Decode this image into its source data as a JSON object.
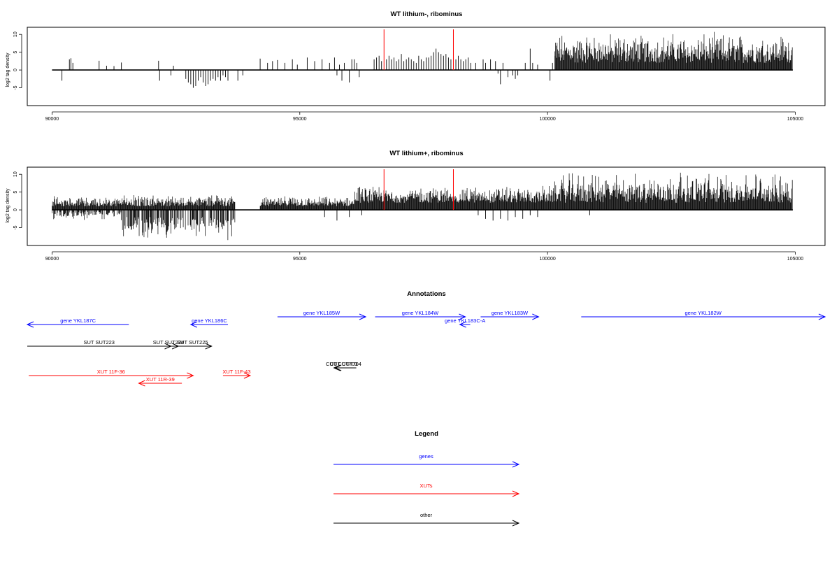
{
  "colors": {
    "genes": "#0000ff",
    "xuts": "#ff0000",
    "other": "#000000",
    "highlight": "#ff0000"
  },
  "chart_data": [
    {
      "type": "bar",
      "title": "WT lithium-, ribominus",
      "ylabel": "log2 tag density",
      "xlim": [
        89500,
        105600
      ],
      "ylim": [
        -10,
        12
      ],
      "x_ticks": [
        90000,
        95000,
        100000,
        105000
      ],
      "x_tick_labels": [
        "90000",
        "95000",
        "100000",
        "105000"
      ],
      "y_ticks": [
        -5,
        0,
        5,
        10
      ],
      "y_tick_labels": [
        "-5",
        "0",
        "5",
        "10"
      ],
      "baseline": [
        90000,
        104950
      ],
      "highlight_x": [
        96700,
        98100
      ],
      "bars": [
        {
          "x": 90200,
          "y": -3
        },
        {
          "x": 90350,
          "y": 3
        },
        {
          "x": 90380,
          "y": 3.3
        },
        {
          "x": 90420,
          "y": 2
        },
        {
          "x": 90950,
          "y": 2.6
        },
        {
          "x": 91100,
          "y": 1.2
        },
        {
          "x": 91250,
          "y": 1.1
        },
        {
          "x": 91400,
          "y": 2.1
        },
        {
          "x": 92150,
          "y": 2.6
        },
        {
          "x": 92170,
          "y": -3
        },
        {
          "x": 92400,
          "y": -1.5
        },
        {
          "x": 92450,
          "y": 1.2
        },
        {
          "x": 92700,
          "y": -2.5
        },
        {
          "x": 92750,
          "y": -3.5
        },
        {
          "x": 92800,
          "y": -4
        },
        {
          "x": 92850,
          "y": -5
        },
        {
          "x": 92900,
          "y": -4.5
        },
        {
          "x": 92950,
          "y": -3
        },
        {
          "x": 93000,
          "y": -2
        },
        {
          "x": 93050,
          "y": -3.5
        },
        {
          "x": 93100,
          "y": -4.5
        },
        {
          "x": 93150,
          "y": -4
        },
        {
          "x": 93200,
          "y": -3
        },
        {
          "x": 93250,
          "y": -2.5
        },
        {
          "x": 93300,
          "y": -3
        },
        {
          "x": 93350,
          "y": -2
        },
        {
          "x": 93400,
          "y": -3
        },
        {
          "x": 93450,
          "y": -1.5
        },
        {
          "x": 93500,
          "y": -2
        },
        {
          "x": 93550,
          "y": -3
        },
        {
          "x": 93750,
          "y": -3
        },
        {
          "x": 93850,
          "y": -1.5
        },
        {
          "x": 94200,
          "y": 3.2
        },
        {
          "x": 94350,
          "y": 2
        },
        {
          "x": 94450,
          "y": 2.5
        },
        {
          "x": 94550,
          "y": 2.8
        },
        {
          "x": 94700,
          "y": 2
        },
        {
          "x": 94850,
          "y": 3
        },
        {
          "x": 94950,
          "y": 1.5
        },
        {
          "x": 95150,
          "y": 3.5
        },
        {
          "x": 95300,
          "y": 2.5
        },
        {
          "x": 95450,
          "y": 3
        },
        {
          "x": 95600,
          "y": 2
        },
        {
          "x": 95700,
          "y": 3.5
        },
        {
          "x": 95750,
          "y": -1.5
        },
        {
          "x": 95800,
          "y": 1.5
        },
        {
          "x": 95850,
          "y": -3
        },
        {
          "x": 95900,
          "y": 2
        },
        {
          "x": 96000,
          "y": -3.5
        },
        {
          "x": 96050,
          "y": 3
        },
        {
          "x": 96100,
          "y": 3
        },
        {
          "x": 96150,
          "y": 2
        },
        {
          "x": 96200,
          "y": -2
        },
        {
          "x": 96500,
          "y": 3
        },
        {
          "x": 96550,
          "y": 3.5
        },
        {
          "x": 96600,
          "y": 4
        },
        {
          "x": 96650,
          "y": 2.5
        },
        {
          "x": 96750,
          "y": 3
        },
        {
          "x": 96800,
          "y": 4
        },
        {
          "x": 96850,
          "y": 3
        },
        {
          "x": 96900,
          "y": 3.5
        },
        {
          "x": 96950,
          "y": 2.5
        },
        {
          "x": 97000,
          "y": 3
        },
        {
          "x": 97050,
          "y": 4.5
        },
        {
          "x": 97100,
          "y": 2.5
        },
        {
          "x": 97150,
          "y": 3
        },
        {
          "x": 97200,
          "y": 3.5
        },
        {
          "x": 97250,
          "y": 3
        },
        {
          "x": 97300,
          "y": 2.5
        },
        {
          "x": 97350,
          "y": 2
        },
        {
          "x": 97400,
          "y": 4
        },
        {
          "x": 97450,
          "y": 3
        },
        {
          "x": 97500,
          "y": 2.5
        },
        {
          "x": 97550,
          "y": 3.5
        },
        {
          "x": 97600,
          "y": 3.5
        },
        {
          "x": 97650,
          "y": 4
        },
        {
          "x": 97700,
          "y": 5
        },
        {
          "x": 97750,
          "y": 6
        },
        {
          "x": 97800,
          "y": 5
        },
        {
          "x": 97850,
          "y": 4.5
        },
        {
          "x": 97900,
          "y": 4
        },
        {
          "x": 97950,
          "y": 4.5
        },
        {
          "x": 98000,
          "y": 3.5
        },
        {
          "x": 98050,
          "y": 3
        },
        {
          "x": 98150,
          "y": 3
        },
        {
          "x": 98200,
          "y": 4
        },
        {
          "x": 98250,
          "y": 3
        },
        {
          "x": 98300,
          "y": 2.5
        },
        {
          "x": 98350,
          "y": 3
        },
        {
          "x": 98400,
          "y": 3.5
        },
        {
          "x": 98450,
          "y": 2
        },
        {
          "x": 98550,
          "y": 2
        },
        {
          "x": 98700,
          "y": 3
        },
        {
          "x": 98750,
          "y": 2
        },
        {
          "x": 98850,
          "y": 3
        },
        {
          "x": 98950,
          "y": 2.5
        },
        {
          "x": 99000,
          "y": -1
        },
        {
          "x": 99050,
          "y": -4
        },
        {
          "x": 99100,
          "y": 2
        },
        {
          "x": 99200,
          "y": -2
        },
        {
          "x": 99300,
          "y": -1.5
        },
        {
          "x": 99350,
          "y": -2.5
        },
        {
          "x": 99400,
          "y": -1.5
        },
        {
          "x": 99550,
          "y": 2
        },
        {
          "x": 99650,
          "y": 6
        },
        {
          "x": 99700,
          "y": 2
        },
        {
          "x": 99800,
          "y": 1.5
        },
        {
          "x": 100050,
          "y": -3
        },
        {
          "x": 100100,
          "y": 2
        },
        {
          "x": 100150,
          "y": 4
        }
      ],
      "dense_region": {
        "x_start": 100150,
        "x_end": 104950,
        "y_min": 2,
        "y_max": 11
      }
    },
    {
      "type": "bar",
      "title": "WT lithium+, ribominus",
      "ylabel": "log2 tag density",
      "xlim": [
        89500,
        105600
      ],
      "ylim": [
        -10,
        12
      ],
      "x_ticks": [
        90000,
        95000,
        100000,
        105000
      ],
      "x_tick_labels": [
        "90000",
        "95000",
        "100000",
        "105000"
      ],
      "y_ticks": [
        -5,
        0,
        5,
        10
      ],
      "y_tick_labels": [
        "-5",
        "0",
        "5",
        "10"
      ],
      "baseline": [
        90000,
        104950
      ],
      "highlight_x": [
        96700,
        98100
      ],
      "bars": [
        {
          "x": 95500,
          "y": -2
        },
        {
          "x": 95750,
          "y": -3
        },
        {
          "x": 96000,
          "y": -2
        },
        {
          "x": 96250,
          "y": -1.5
        },
        {
          "x": 98600,
          "y": -1.5
        },
        {
          "x": 98750,
          "y": -2.5
        },
        {
          "x": 98900,
          "y": -3
        },
        {
          "x": 99050,
          "y": -2.5
        },
        {
          "x": 99200,
          "y": -3
        },
        {
          "x": 99350,
          "y": -2
        },
        {
          "x": 99500,
          "y": -2.5
        },
        {
          "x": 99650,
          "y": -1.5
        },
        {
          "x": 99800,
          "y": -2
        },
        {
          "x": 100850,
          "y": -1.5
        }
      ],
      "dense_regions": [
        {
          "x_start": 90000,
          "x_end": 91400,
          "y_min": 1,
          "y_max": 4,
          "neg_min": 0.5,
          "neg_max": 3
        },
        {
          "x_start": 91400,
          "x_end": 93700,
          "y_min": 1,
          "y_max": 4.5,
          "neg_min": 2,
          "neg_max": 9
        },
        {
          "x_start": 94200,
          "x_end": 96100,
          "y_min": 1,
          "y_max": 4,
          "neg_min": 0,
          "neg_max": 0
        },
        {
          "x_start": 96100,
          "x_end": 100100,
          "y_min": 2,
          "y_max": 7,
          "neg_min": 0,
          "neg_max": 0
        },
        {
          "x_start": 100100,
          "x_end": 104950,
          "y_min": 2,
          "y_max": 11,
          "neg_min": 0,
          "neg_max": 0
        }
      ]
    }
  ],
  "annotations": {
    "title": "Annotations",
    "xlim": [
      89500,
      105600
    ],
    "features": [
      {
        "label": "gene YKL187C",
        "start": 89500,
        "end": 91550,
        "strand": "-",
        "class": "genes",
        "row": 1
      },
      {
        "label": "gene YKL186C",
        "start": 92800,
        "end": 93550,
        "strand": "-",
        "class": "genes",
        "row": 1
      },
      {
        "label": "gene YKL185W",
        "start": 94550,
        "end": 96330,
        "strand": "+",
        "class": "genes",
        "row": 0
      },
      {
        "label": "gene YKL184W",
        "start": 96520,
        "end": 98340,
        "strand": "+",
        "class": "genes",
        "row": 0
      },
      {
        "label": "gene YKL183C-A",
        "start": 98230,
        "end": 98440,
        "strand": "-",
        "class": "genes",
        "row": 1
      },
      {
        "label": "gene YKL183W",
        "start": 98650,
        "end": 99820,
        "strand": "+",
        "class": "genes",
        "row": 0
      },
      {
        "label": "gene YKL182W",
        "start": 100680,
        "end": 105600,
        "strand": "+",
        "class": "genes",
        "row": 0
      },
      {
        "label": "SUT SUT223",
        "start": 89500,
        "end": 92400,
        "strand": "+",
        "class": "other",
        "row": 2
      },
      {
        "label": "SUT SUT224",
        "start": 92150,
        "end": 92550,
        "strand": "+",
        "class": "other",
        "row": 2
      },
      {
        "label": "SUT SUT225",
        "start": 92450,
        "end": 93220,
        "strand": "+",
        "class": "other",
        "row": 2
      },
      {
        "label": "XUT 11F-36",
        "start": 89530,
        "end": 92850,
        "strand": "+",
        "class": "xuts",
        "row": 3
      },
      {
        "label": "XUT 11R-39",
        "start": 91750,
        "end": 92620,
        "strand": "-",
        "class": "xuts",
        "row": 4
      },
      {
        "label": "XUT 11F-43",
        "start": 93450,
        "end": 94000,
        "strand": "+",
        "class": "xuts",
        "row": 3
      },
      {
        "label": "CUT CUT703",
        "start": 95690,
        "end": 96000,
        "strand": "-",
        "class": "other",
        "row": 5
      },
      {
        "label": "CUT CUT704",
        "start": 95710,
        "end": 96140,
        "strand": "-",
        "class": "other",
        "row": 5
      }
    ]
  },
  "legend": {
    "title": "Legend",
    "items": [
      {
        "label": "genes",
        "class": "genes"
      },
      {
        "label": "XUTs",
        "class": "xuts"
      },
      {
        "label": "other",
        "class": "other"
      }
    ]
  }
}
